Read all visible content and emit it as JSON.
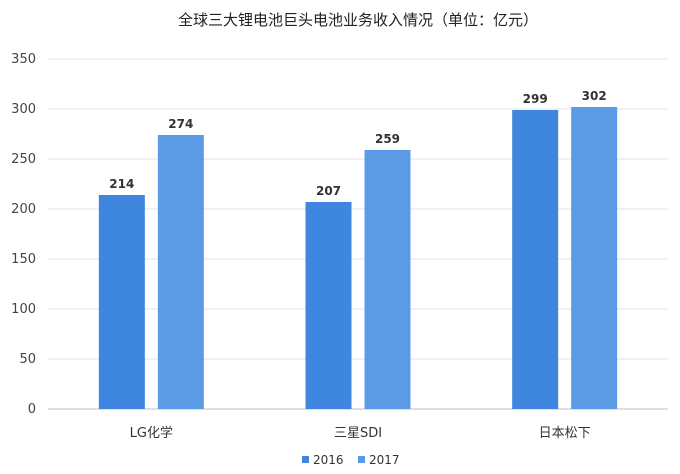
{
  "chart_data": {
    "type": "bar",
    "title": "全球三大锂电池巨头电池业务收入情况（单位：亿元）",
    "categories": [
      "LG化学",
      "三星SDI",
      "日本松下"
    ],
    "series": [
      {
        "name": "2016",
        "values": [
          214,
          207,
          299
        ],
        "color": "#3f86df"
      },
      {
        "name": "2017",
        "values": [
          274,
          259,
          302
        ],
        "color": "#5b9be6"
      }
    ],
    "y_ticks": [
      "0",
      "50",
      "100",
      "150",
      "200",
      "250",
      "300",
      "350"
    ],
    "ylim": [
      0,
      350
    ],
    "grid": true,
    "legend_position": "bottom-center"
  }
}
